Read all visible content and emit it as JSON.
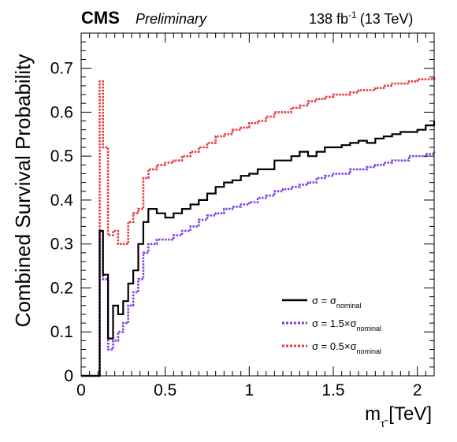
{
  "header": {
    "experiment": "CMS",
    "status": "Preliminary",
    "lumi": "138 fb",
    "lumi_exp": "-1",
    "energy": "(13 TeV)"
  },
  "chart_data": {
    "type": "line",
    "style": "step-histogram",
    "xlabel_main": "m",
    "xlabel_sub": "τ̃",
    "xlabel_unit": "[TeV]",
    "ylabel": "Combined Survival Probability",
    "xlim": [
      0,
      2.1
    ],
    "ylim": [
      0,
      0.78
    ],
    "x_ticks": [
      0,
      0.5,
      1,
      1.5,
      2
    ],
    "x_tick_labels": [
      "0",
      "0.5",
      "1",
      "1.5",
      "2"
    ],
    "y_ticks": [
      0,
      0.1,
      0.2,
      0.3,
      0.4,
      0.5,
      0.6,
      0.7
    ],
    "y_tick_labels": [
      "0",
      "0.1",
      "0.2",
      "0.3",
      "0.4",
      "0.5",
      "0.6",
      "0.7"
    ],
    "grid": false,
    "legend_position": "bottom-right",
    "series": [
      {
        "key": "nominal",
        "legend_sigma": "σ = σ",
        "legend_sub": "nominal",
        "color": "#000000",
        "dashed": false,
        "points": [
          [
            0,
            0
          ],
          [
            0.1,
            0
          ],
          [
            0.11,
            0.33
          ],
          [
            0.13,
            0.23
          ],
          [
            0.16,
            0.085
          ],
          [
            0.19,
            0.16
          ],
          [
            0.22,
            0.14
          ],
          [
            0.25,
            0.17
          ],
          [
            0.28,
            0.21
          ],
          [
            0.31,
            0.24
          ],
          [
            0.34,
            0.3
          ],
          [
            0.37,
            0.35
          ],
          [
            0.4,
            0.38
          ],
          [
            0.45,
            0.37
          ],
          [
            0.5,
            0.36
          ],
          [
            0.55,
            0.37
          ],
          [
            0.6,
            0.38
          ],
          [
            0.65,
            0.39
          ],
          [
            0.7,
            0.4
          ],
          [
            0.75,
            0.415
          ],
          [
            0.8,
            0.43
          ],
          [
            0.85,
            0.44
          ],
          [
            0.9,
            0.445
          ],
          [
            0.95,
            0.455
          ],
          [
            1.0,
            0.46
          ],
          [
            1.05,
            0.47
          ],
          [
            1.1,
            0.47
          ],
          [
            1.15,
            0.49
          ],
          [
            1.2,
            0.49
          ],
          [
            1.25,
            0.5
          ],
          [
            1.3,
            0.51
          ],
          [
            1.35,
            0.5
          ],
          [
            1.4,
            0.51
          ],
          [
            1.45,
            0.52
          ],
          [
            1.5,
            0.52
          ],
          [
            1.55,
            0.525
          ],
          [
            1.6,
            0.53
          ],
          [
            1.65,
            0.535
          ],
          [
            1.7,
            0.53
          ],
          [
            1.75,
            0.54
          ],
          [
            1.8,
            0.545
          ],
          [
            1.85,
            0.55
          ],
          [
            1.9,
            0.555
          ],
          [
            1.95,
            0.555
          ],
          [
            2.0,
            0.56
          ],
          [
            2.05,
            0.57
          ],
          [
            2.1,
            0.58
          ]
        ]
      },
      {
        "key": "high",
        "legend_sigma": "σ = 1.5×σ",
        "legend_sub": "nominal",
        "color": "#7b3fe4",
        "dashed": true,
        "points": [
          [
            0,
            0
          ],
          [
            0.1,
            0
          ],
          [
            0.11,
            0.33
          ],
          [
            0.13,
            0.22
          ],
          [
            0.16,
            0.06
          ],
          [
            0.19,
            0.08
          ],
          [
            0.22,
            0.1
          ],
          [
            0.25,
            0.12
          ],
          [
            0.28,
            0.16
          ],
          [
            0.31,
            0.19
          ],
          [
            0.34,
            0.22
          ],
          [
            0.37,
            0.28
          ],
          [
            0.4,
            0.3
          ],
          [
            0.45,
            0.31
          ],
          [
            0.5,
            0.31
          ],
          [
            0.55,
            0.32
          ],
          [
            0.6,
            0.33
          ],
          [
            0.65,
            0.34
          ],
          [
            0.7,
            0.355
          ],
          [
            0.75,
            0.365
          ],
          [
            0.8,
            0.37
          ],
          [
            0.85,
            0.38
          ],
          [
            0.9,
            0.385
          ],
          [
            0.95,
            0.39
          ],
          [
            1.0,
            0.395
          ],
          [
            1.05,
            0.405
          ],
          [
            1.1,
            0.41
          ],
          [
            1.15,
            0.42
          ],
          [
            1.2,
            0.425
          ],
          [
            1.25,
            0.43
          ],
          [
            1.3,
            0.435
          ],
          [
            1.35,
            0.44
          ],
          [
            1.4,
            0.45
          ],
          [
            1.45,
            0.455
          ],
          [
            1.5,
            0.46
          ],
          [
            1.55,
            0.46
          ],
          [
            1.6,
            0.47
          ],
          [
            1.65,
            0.47
          ],
          [
            1.7,
            0.475
          ],
          [
            1.75,
            0.48
          ],
          [
            1.8,
            0.485
          ],
          [
            1.85,
            0.49
          ],
          [
            1.9,
            0.49
          ],
          [
            1.95,
            0.5
          ],
          [
            2.0,
            0.5
          ],
          [
            2.05,
            0.505
          ],
          [
            2.1,
            0.51
          ]
        ]
      },
      {
        "key": "low",
        "legend_sigma": "σ = 0.5×σ",
        "legend_sub": "nominal",
        "color": "#e8383d",
        "dashed": true,
        "points": [
          [
            0,
            0
          ],
          [
            0.1,
            0
          ],
          [
            0.11,
            0.67
          ],
          [
            0.13,
            0.52
          ],
          [
            0.16,
            0.32
          ],
          [
            0.19,
            0.33
          ],
          [
            0.22,
            0.3
          ],
          [
            0.25,
            0.3
          ],
          [
            0.28,
            0.35
          ],
          [
            0.31,
            0.37
          ],
          [
            0.34,
            0.38
          ],
          [
            0.37,
            0.45
          ],
          [
            0.4,
            0.47
          ],
          [
            0.45,
            0.48
          ],
          [
            0.5,
            0.485
          ],
          [
            0.55,
            0.49
          ],
          [
            0.6,
            0.5
          ],
          [
            0.65,
            0.51
          ],
          [
            0.7,
            0.52
          ],
          [
            0.75,
            0.53
          ],
          [
            0.8,
            0.545
          ],
          [
            0.85,
            0.55
          ],
          [
            0.9,
            0.56
          ],
          [
            0.95,
            0.565
          ],
          [
            1.0,
            0.575
          ],
          [
            1.05,
            0.58
          ],
          [
            1.1,
            0.59
          ],
          [
            1.15,
            0.6
          ],
          [
            1.2,
            0.6
          ],
          [
            1.25,
            0.61
          ],
          [
            1.3,
            0.615
          ],
          [
            1.35,
            0.625
          ],
          [
            1.4,
            0.63
          ],
          [
            1.45,
            0.635
          ],
          [
            1.5,
            0.64
          ],
          [
            1.55,
            0.64
          ],
          [
            1.6,
            0.645
          ],
          [
            1.65,
            0.65
          ],
          [
            1.7,
            0.65
          ],
          [
            1.75,
            0.655
          ],
          [
            1.8,
            0.66
          ],
          [
            1.85,
            0.665
          ],
          [
            1.9,
            0.665
          ],
          [
            1.95,
            0.67
          ],
          [
            2.0,
            0.675
          ],
          [
            2.05,
            0.675
          ],
          [
            2.1,
            0.68
          ]
        ]
      }
    ]
  }
}
